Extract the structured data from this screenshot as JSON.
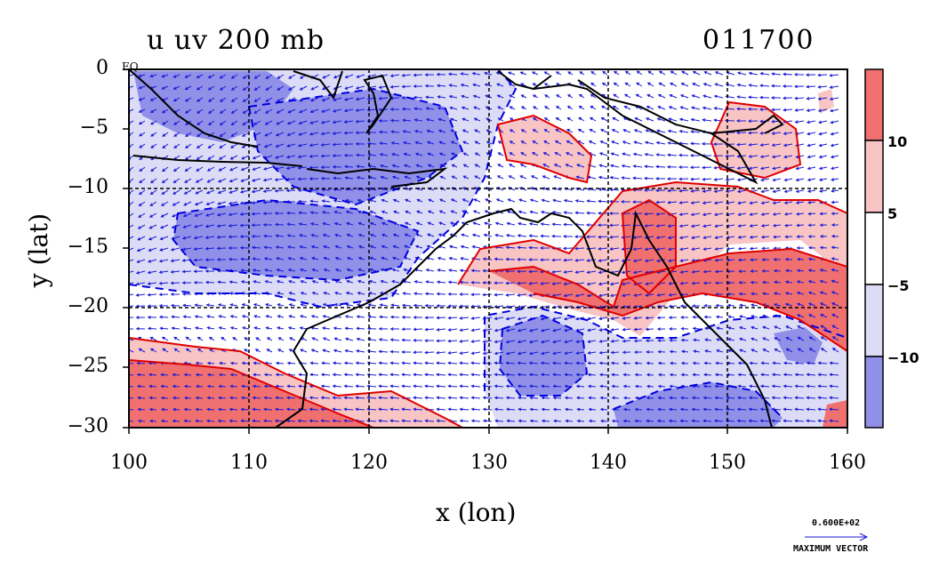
{
  "title": {
    "left": "u uv 200 mb",
    "right": "011700"
  },
  "axes": {
    "xlabel": "x (lon)",
    "ylabel": "y (lat)",
    "x_ticks": [
      "100",
      "110",
      "120",
      "130",
      "140",
      "150",
      "160"
    ],
    "y_ticks": [
      "0",
      "−5",
      "−10",
      "−15",
      "−20",
      "−25",
      "−30"
    ],
    "equator_label": "EQ",
    "xlim": [
      100,
      160
    ],
    "ylim": [
      -30,
      0
    ]
  },
  "colorbar": {
    "ticks": [
      "10",
      "5",
      "−5",
      "−10"
    ],
    "colors": [
      "#f07070",
      "#f8c4c4",
      "#ffffff",
      "#dcdcf6",
      "#9090e8"
    ]
  },
  "vector_key": {
    "value": "0.600E+02",
    "caption": "MAXIMUM VECTOR"
  },
  "colors": {
    "strong_positive": "#f07070",
    "weak_positive": "#f8c4c4",
    "weak_negative": "#dcdcf6",
    "strong_negative": "#9090e8",
    "positive_contour": "#e00000",
    "negative_contour": "#0000e0",
    "vectors": "#1a1ad8",
    "coast": "#000000"
  }
}
